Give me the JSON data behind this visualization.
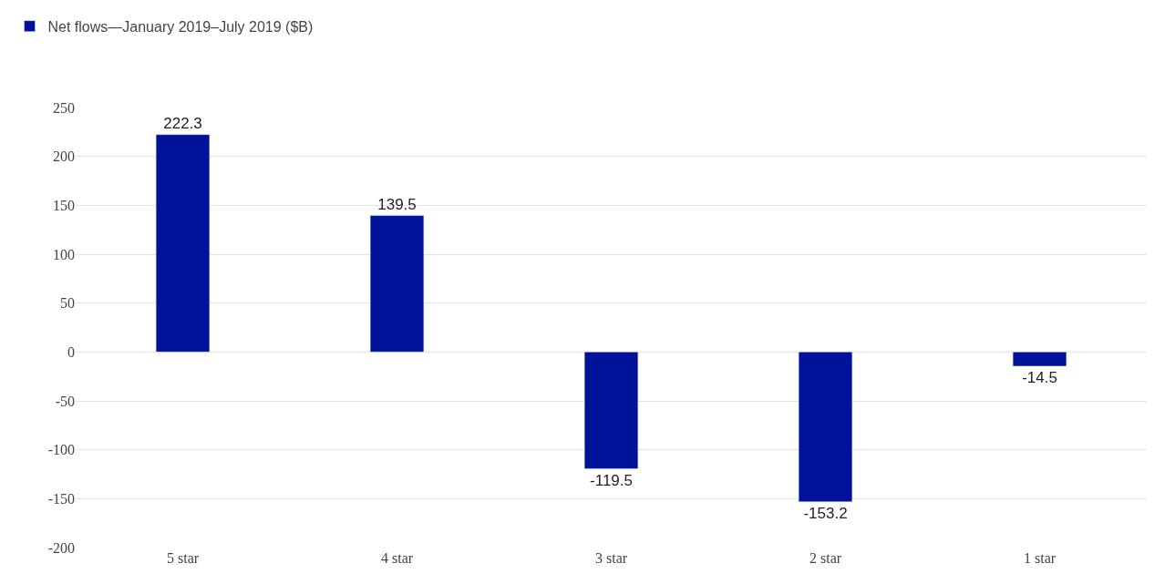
{
  "chart_data": {
    "type": "bar",
    "categories": [
      "5 star",
      "4 star",
      "3 star",
      "2 star",
      "1 star"
    ],
    "series": [
      {
        "name": "Net flows—January 2019–July 2019 ($B)",
        "color": "#00129a",
        "values": [
          222.3,
          139.5,
          -119.5,
          -153.2,
          -14.5
        ]
      }
    ],
    "ylim": [
      -200,
      250
    ],
    "yticks": [
      -200,
      -150,
      -100,
      -50,
      0,
      50,
      100,
      150,
      200,
      250
    ],
    "grid": "y",
    "legend": "top left",
    "data_labels": true
  }
}
